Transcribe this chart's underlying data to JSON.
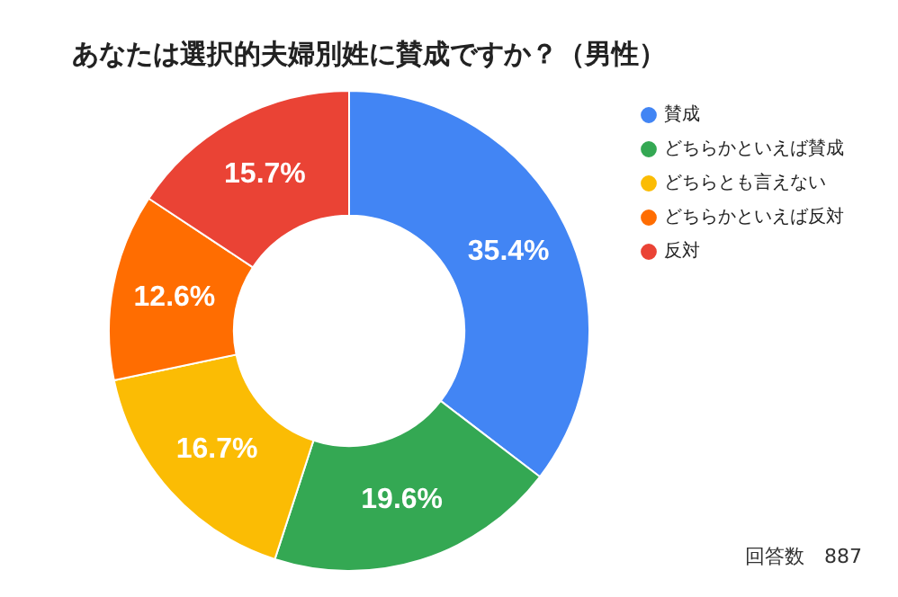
{
  "chart_data": {
    "type": "donut",
    "title": "あなたは選択的夫婦別姓に賛成ですか？（男性）",
    "categories": [
      "賛成",
      "どちらかといえば賛成",
      "どちらとも言えない",
      "どちらかといえば反対",
      "反対"
    ],
    "values": [
      35.4,
      19.6,
      16.7,
      12.6,
      15.7
    ],
    "colors": [
      "#4285f4",
      "#34a853",
      "#fbbc04",
      "#ff6d01",
      "#ea4335"
    ],
    "value_labels": [
      "35.4%",
      "19.6%",
      "16.7%",
      "12.6%",
      "15.7%"
    ],
    "legend": "right",
    "annotations": [
      "回答数　887"
    ]
  }
}
